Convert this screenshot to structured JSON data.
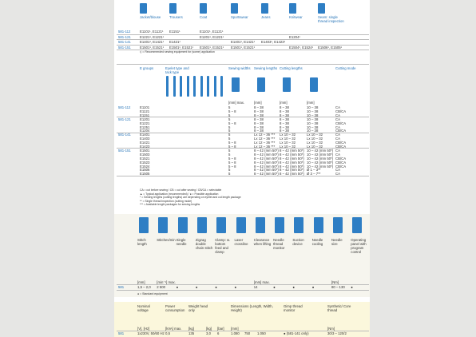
{
  "usage": {
    "headers": [
      "Jacket/blouse",
      "Trousers",
      "Coat",
      "Sportswear",
      "Jeans",
      "Knitwear",
      "Seam: single thread inspection"
    ],
    "rows": [
      {
        "model": "581-112",
        "cells": [
          "E1101¹, E1121¹",
          "E1151¹",
          "E1101¹, E1121¹",
          "",
          "",
          "",
          ""
        ]
      },
      {
        "model": "581-121",
        "cells": [
          "E1221¹, E1221¹",
          "",
          "E1201¹, E1221¹",
          "",
          "",
          "E1204¹",
          ""
        ]
      },
      {
        "model": "581-141",
        "cells": [
          "E1401¹, E1421¹",
          "E1421¹",
          "",
          "E1401¹, E1421¹",
          "E1403¹, E1423¹",
          "",
          ""
        ]
      },
      {
        "model": "581-151",
        "cells": [
          "E1501¹, E1521¹",
          "E1501¹, E1521¹",
          "E1501¹, E1521¹",
          "E1501¹, E1521¹",
          "",
          "E1504¹, E1524¹",
          "E1506¹, E1505¹"
        ]
      }
    ],
    "footnote": "¹) = Recommended sewing equipment for (some) application"
  },
  "eyelets": {
    "headers": [
      "E groups",
      "Eyelet type and tack type",
      "Sewing widths",
      "Sewing lengths",
      "Cutting lengths",
      "Cutting mode"
    ],
    "units": [
      "[mm] max.",
      "[mm]",
      "[mm]",
      "[mm]"
    ],
    "groups": [
      {
        "model": "581-112",
        "rows": [
          [
            "E1101",
            "5",
            "8 – 38",
            "8 – 38",
            "10 – 38",
            "CA"
          ],
          [
            "E1121",
            "5 – 8",
            "8 – 38",
            "8 – 38",
            "10 – 38",
            "CB/CA"
          ],
          [
            "E1151",
            "5",
            "8 – 38",
            "8 – 38",
            "10 – 38",
            "CA"
          ]
        ]
      },
      {
        "model": "581-121",
        "rows": [
          [
            "E1201",
            "5",
            "8 – 38",
            "8 – 38",
            "10 – 38",
            "CA"
          ],
          [
            "E1221",
            "5 – 8",
            "8 – 38",
            "8 – 38",
            "10 – 38",
            "CB/CA"
          ],
          [
            "E1251",
            "5",
            "8 – 38",
            "8 – 38",
            "10 – 38",
            "CA"
          ],
          [
            "E1204",
            "5",
            "8 – 38",
            "8 – 38",
            "10 – 38",
            "CB/CA"
          ]
        ]
      },
      {
        "model": "581-141",
        "rows": [
          [
            "E1401",
            "5",
            "Lx 12 – 36 ***",
            "Lx 10 – 32",
            "Lx 10 – 32",
            "CA"
          ],
          [
            "E1403",
            "5",
            "Lx 12 – 36 ***",
            "Lx 10 – 32",
            "Lx 10 – 32",
            "CA"
          ],
          [
            "E1421",
            "5 – 8",
            "Lx 12 – 36 ***",
            "Lx 10 – 32",
            "Lx 10 – 32",
            "CB/CA"
          ],
          [
            "E1423",
            "5 – 8",
            "Lx 12 – 36 ***",
            "Lx 10 – 32",
            "Lx 10 – 32",
            "CB/CA"
          ]
        ]
      },
      {
        "model": "581-151",
        "rows": [
          [
            "E1501",
            "5",
            "8 – 42 (mm 50*)",
            "8 – 42 (mm 50*)",
            "10 – 42 (mm 50*)",
            "CA"
          ],
          [
            "E1503",
            "5",
            "8 – 42 (mm 50*)",
            "8 – 42 (mm 50*)",
            "10 – 42 (mm 50*)",
            "CA"
          ],
          [
            "E1521",
            "5 – 8",
            "8 – 42 (mm 50*)",
            "8 – 42 (mm 50*)",
            "10 – 42 (mm 50*)",
            "CB/CA"
          ],
          [
            "E1523",
            "5 – 8",
            "8 – 42 (mm 50*)",
            "8 – 42 (mm 50*)",
            "10 – 42 (mm 50*)",
            "CB/CA"
          ],
          [
            "E1524",
            "5 – 8",
            "8 – 42 (mm 50*)",
            "8 – 42 (mm 50*)",
            "10 – 42 (mm 50*)",
            "CB/CA"
          ],
          [
            "E1506",
            "5",
            "8 – 42 (mm 50*)",
            "8 – 42 (mm 50*)",
            "Ø 1 – 3**",
            "CA"
          ],
          [
            "E1505",
            "5",
            "8 – 42 (mm 50*)",
            "8 – 42 (mm 50*)",
            "Ø 3 – 7**",
            "CA"
          ]
        ]
      }
    ],
    "legend": [
      "CA = cut before sewing / CB = cut after sewing / CB/CA = selectable",
      "▲ = Typical application (recommended) / ● = Possible application",
      "* = Sewing lengths (cutting lengths) are depending on eyelet and cut length package",
      "** = Single thread inspection (cutting mode)",
      "*** = Available length packages for sewing lengths"
    ]
  },
  "features": {
    "headers": [
      "Stitch length",
      "Stitches/min",
      "Single needle",
      "Zigzag double chain stitch",
      "Clamp: w. bottom feed and clamp",
      "Laser crossline",
      "Clearance when lifting",
      "Needle thread monitor",
      "Suction device",
      "Needle cooling",
      "Needle size",
      "Operating panel with program control"
    ],
    "units": [
      "[mm]",
      "[min⁻¹] max.",
      "",
      "",
      "",
      "",
      "[mm] max.",
      "",
      "",
      "",
      "[Nm]",
      ""
    ],
    "model": "581",
    "values": [
      "1,5 – 2,0",
      "2 500",
      "●",
      "●",
      "●",
      "●",
      "14",
      "●",
      "●",
      "●",
      "80 – 130",
      "●"
    ],
    "footnote": "● = Standard equipment"
  },
  "technical": {
    "headers": [
      "Nominal voltage",
      "Power consumption",
      "Weight head only",
      "",
      "",
      "Dimensions (Length, Width, Height)",
      "",
      "",
      "Gimp thread monitor",
      "Synthetic/ Core thread"
    ],
    "units": [
      "[V], [Hz]",
      "[kVA] max.",
      "[kg]",
      "[kg]",
      "[bar]",
      "[mm]",
      "",
      "",
      "",
      "[Nm]"
    ],
    "model": "581",
    "values": [
      "1x230V, 50/60 Hz",
      "0,5",
      "135",
      "3,0",
      "6",
      "1.080",
      "750",
      "1.050",
      "● (581-141 only)",
      "30/3 – 120/2"
    ]
  }
}
